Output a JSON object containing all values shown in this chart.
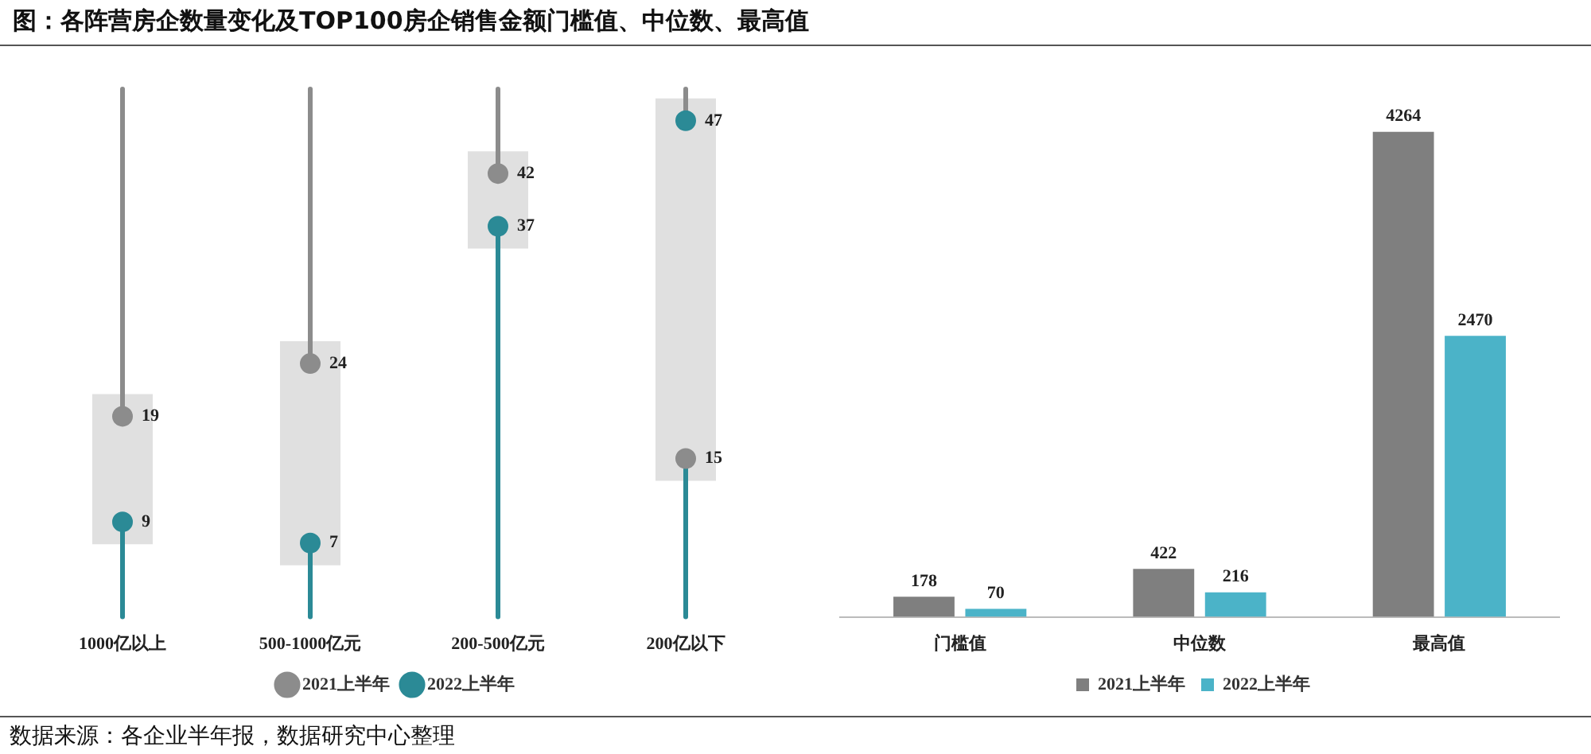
{
  "chart_data": [
    {
      "type": "scatter",
      "title": "图：各阵营房企数量变化及TOP100房企销售金额门槛值、中位数、最高值",
      "categories": [
        "1000亿以上",
        "500-1000亿元",
        "200-500亿元",
        "200亿以下"
      ],
      "series": [
        {
          "name": "2021上半年",
          "color": "#8c8c8c",
          "values": [
            19,
            24,
            42,
            15
          ]
        },
        {
          "name": "2022上半年",
          "color": "#2b8a96",
          "values": [
            9,
            7,
            37,
            47
          ]
        }
      ],
      "data_labels": true,
      "legend": "bottom",
      "tick_labels": "x"
    },
    {
      "type": "bar",
      "categories": [
        "门槛值",
        "中位数",
        "最高值"
      ],
      "series": [
        {
          "name": "2021上半年",
          "color": "#7f7f7f",
          "values": [
            178,
            422,
            4264
          ]
        },
        {
          "name": "2022上半年",
          "color": "#4bb3c8",
          "values": [
            70,
            216,
            2470
          ]
        }
      ],
      "data_labels": true,
      "legend": "bottom",
      "tick_labels": "x",
      "annotations": [
        "数据来源：各企业半年报，数据研究中心整理"
      ]
    }
  ]
}
